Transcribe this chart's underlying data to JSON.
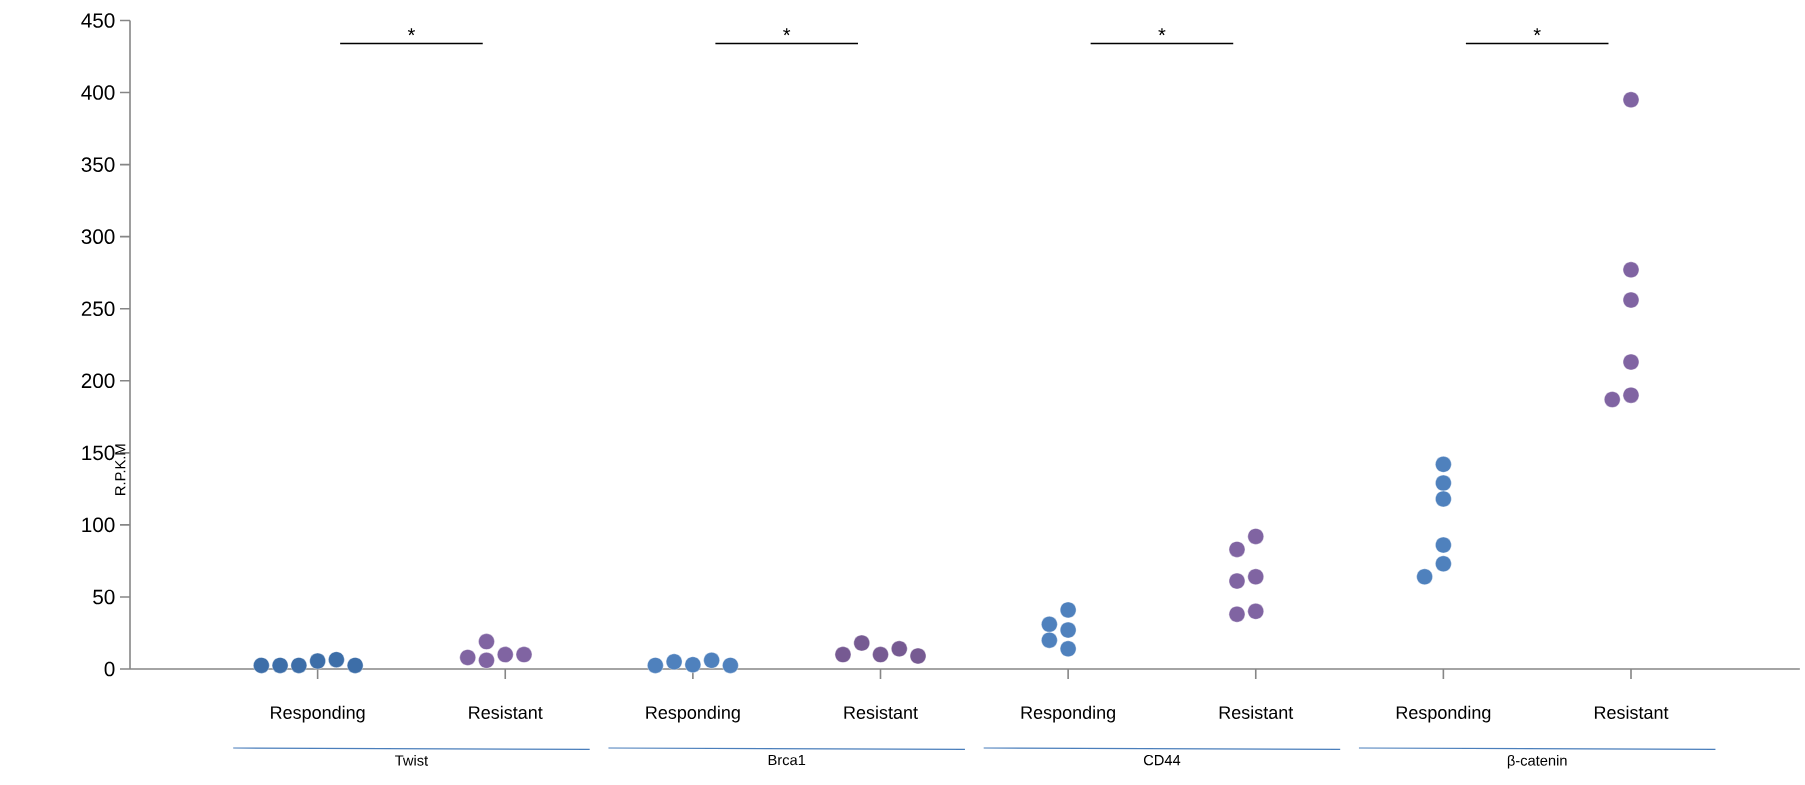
{
  "chart_data": {
    "type": "scatter",
    "ylabel": "R.P.K.M",
    "categories": [
      "Responding",
      "Resistant",
      "Responding",
      "Resistant",
      "Responding",
      "Resistant",
      "Responding",
      "Resistant"
    ],
    "ylim": [
      0,
      450
    ],
    "yticks": [
      0,
      50,
      100,
      150,
      200,
      250,
      300,
      350,
      400,
      450
    ],
    "marker": "circle",
    "series": [
      {
        "colors": [
          "#3d6ea8",
          "#8064a2",
          "#4f81bd",
          "#765a92",
          "#4f81bd",
          "#8064a2",
          "#4f81bd",
          "#8064a2"
        ],
        "values": [
          5.5,
          10,
          3,
          10,
          41,
          92,
          142,
          395
        ]
      },
      {
        "colors": [
          "#3d6ea8",
          "#8064a2",
          "#4f81bd",
          "#765a92",
          "#4f81bd",
          "#8064a2",
          "#4f81bd",
          "#8064a2"
        ],
        "values": [
          2.5,
          19,
          5,
          18,
          31,
          83,
          129,
          277
        ]
      },
      {
        "colors": [
          "#3d6ea8",
          "#8064a2",
          "#4f81bd",
          "#765a92",
          "#4f81bd",
          "#8064a2",
          "#4f81bd",
          "#8064a2"
        ],
        "values": [
          6.5,
          10,
          6,
          14,
          27,
          64,
          118,
          256
        ]
      },
      {
        "colors": [
          "#3d6ea8",
          "#8064a2",
          "#4f81bd",
          "#765a92",
          "#4f81bd",
          "#8064a2",
          "#4f81bd",
          "#8064a2"
        ],
        "values": [
          2.5,
          6,
          2.5,
          10,
          20,
          61,
          86,
          213
        ]
      },
      {
        "colors": [
          "#3d6ea8",
          "#8064a2",
          "#4f81bd",
          "#765a92",
          "#4f81bd",
          "#8064a2",
          "#4f81bd",
          "#8064a2"
        ],
        "values": [
          2.5,
          8,
          2.5,
          9,
          14,
          40,
          73,
          190
        ]
      },
      {
        "colors": [
          "#3d6ea8",
          null,
          null,
          null,
          null,
          "#8064a2",
          "#4f81bd",
          "#8064a2"
        ],
        "values": [
          2.5,
          null,
          null,
          null,
          null,
          38,
          64,
          187
        ]
      }
    ],
    "annotations": [
      "*",
      "*",
      "*",
      "*",
      "Twist",
      "Brca1",
      "CD44",
      "β-catenin"
    ]
  }
}
